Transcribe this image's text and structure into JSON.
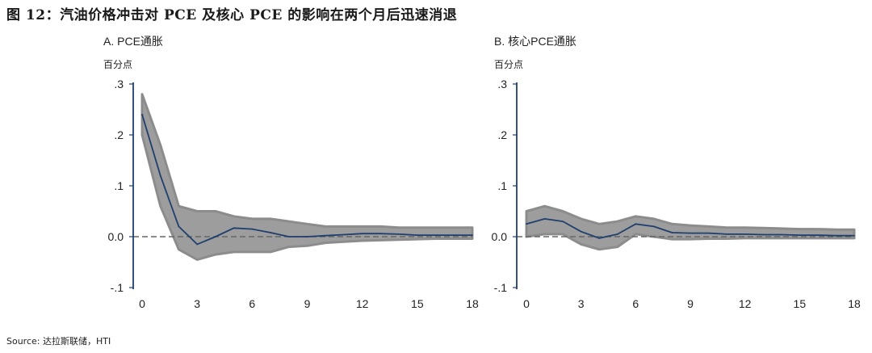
{
  "figure": {
    "title": "图 12：汽油价格冲击对 PCE 及核心 PCE 的影响在两个月后迅速消退",
    "source": "Source: 达拉斯联储，HTI"
  },
  "chart_data": [
    {
      "type": "line",
      "title": "A. PCE通胀",
      "ylabel": "百分点",
      "xlim": [
        0,
        18
      ],
      "ylim": [
        -0.1,
        0.3
      ],
      "xticks": [
        0,
        3,
        6,
        9,
        12,
        15,
        18
      ],
      "xtick_labels": [
        "0",
        "3",
        "6",
        "9",
        "12",
        "15",
        "18"
      ],
      "yticks": [
        0.3,
        0.2,
        0.1,
        0.0,
        -0.1
      ],
      "ytick_labels": [
        ".3",
        ".2",
        ".1",
        "0.0",
        "-.1"
      ],
      "zero_line": "dashed",
      "series": [
        {
          "role": "estimate",
          "color": "#1f3f6e",
          "x": [
            0,
            1,
            2,
            3,
            4,
            5,
            6,
            7,
            8,
            9,
            10,
            11,
            12,
            13,
            14,
            15,
            16,
            17,
            18
          ],
          "y": [
            0.24,
            0.12,
            0.02,
            -0.015,
            0.0,
            0.017,
            0.015,
            0.008,
            0.0,
            0.0,
            0.002,
            0.004,
            0.006,
            0.006,
            0.005,
            0.003,
            0.003,
            0.003,
            0.003
          ]
        },
        {
          "role": "confidence_band",
          "color": "#8c8c8c",
          "upper": [
            0.28,
            0.18,
            0.06,
            0.05,
            0.05,
            0.04,
            0.035,
            0.035,
            0.03,
            0.025,
            0.02,
            0.02,
            0.02,
            0.02,
            0.018,
            0.018,
            0.018,
            0.018,
            0.018
          ],
          "lower": [
            0.2,
            0.06,
            -0.025,
            -0.045,
            -0.035,
            -0.03,
            -0.03,
            -0.03,
            -0.02,
            -0.018,
            -0.012,
            -0.01,
            -0.008,
            -0.007,
            -0.006,
            -0.005,
            -0.004,
            -0.004,
            -0.004
          ]
        }
      ]
    },
    {
      "type": "line",
      "title": "B. 核心PCE通胀",
      "ylabel": "百分点",
      "xlim": [
        0,
        18
      ],
      "ylim": [
        -0.1,
        0.3
      ],
      "xticks": [
        0,
        3,
        6,
        9,
        12,
        15,
        18
      ],
      "xtick_labels": [
        "0",
        "3",
        "6",
        "9",
        "12",
        "15",
        "18"
      ],
      "yticks": [
        0.3,
        0.2,
        0.1,
        0.0,
        -0.1
      ],
      "ytick_labels": [
        ".3",
        ".2",
        ".1",
        "0.0",
        "-.1"
      ],
      "zero_line": "dashed",
      "series": [
        {
          "role": "estimate",
          "color": "#1f3f6e",
          "x": [
            0,
            1,
            2,
            3,
            4,
            5,
            6,
            7,
            8,
            9,
            10,
            11,
            12,
            13,
            14,
            15,
            16,
            17,
            18
          ],
          "y": [
            0.025,
            0.035,
            0.03,
            0.01,
            -0.003,
            0.005,
            0.025,
            0.02,
            0.008,
            0.007,
            0.007,
            0.005,
            0.005,
            0.004,
            0.004,
            0.003,
            0.003,
            0.002,
            0.002
          ]
        },
        {
          "role": "confidence_band",
          "color": "#8c8c8c",
          "upper": [
            0.05,
            0.06,
            0.05,
            0.035,
            0.025,
            0.03,
            0.04,
            0.035,
            0.025,
            0.022,
            0.02,
            0.018,
            0.018,
            0.017,
            0.016,
            0.015,
            0.015,
            0.014,
            0.014
          ],
          "lower": [
            0.0,
            0.005,
            0.005,
            -0.015,
            -0.025,
            -0.02,
            0.005,
            0.0,
            -0.005,
            -0.005,
            -0.004,
            -0.004,
            -0.003,
            -0.003,
            -0.003,
            -0.003,
            -0.003,
            -0.003,
            -0.003
          ]
        }
      ]
    }
  ]
}
